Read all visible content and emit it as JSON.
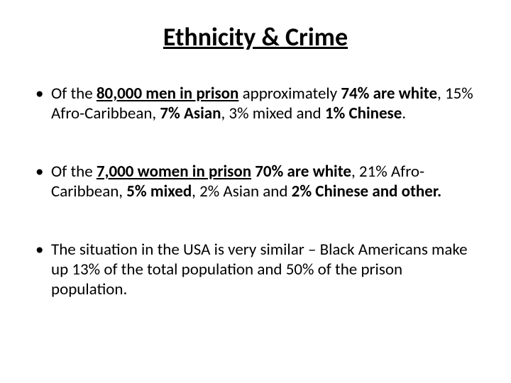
{
  "title": "Ethnicity & Crime",
  "b1": {
    "t1": "Of the ",
    "t2": "80,000 men in prison",
    "t3": " approximately ",
    "t4": "74% are white",
    "t5": ", 15% Afro-Caribbean, ",
    "t6": "7% Asian",
    "t7": ", 3% mixed and ",
    "t8": "1% Chinese",
    "t9": "."
  },
  "b2": {
    "t1": "Of the ",
    "t2": "7,000 women in prison",
    "t3": " ",
    "t4": "70% are white",
    "t5": ", 21% Afro-Caribbean, ",
    "t6": "5% mixed",
    "t7": ", 2% Asian and ",
    "t8": "2% Chinese and other.",
    "t9": ""
  },
  "b3": {
    "t1": "The situation in the USA is very similar – Black Americans make up 13% of the total population and 50% of the prison population."
  }
}
